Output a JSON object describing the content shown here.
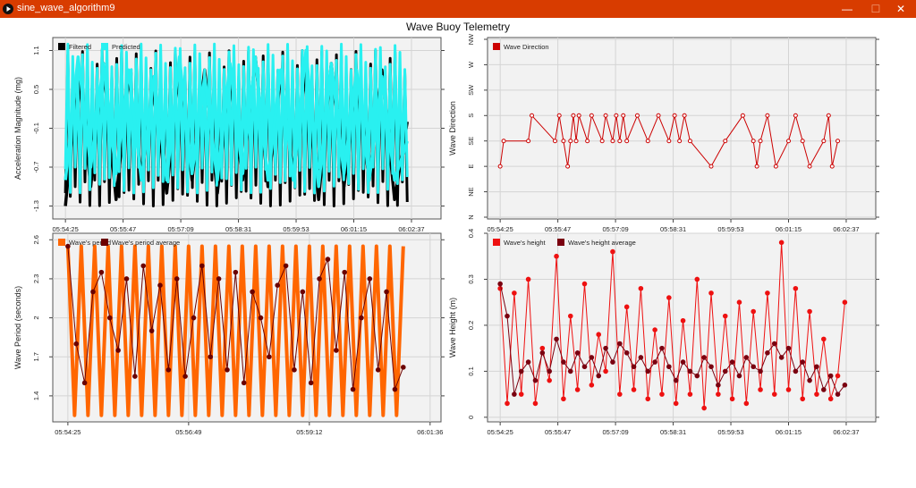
{
  "window": {
    "title": "sine_wave_algorithm9",
    "minimize_glyph": "—",
    "maximize_glyph": "☐",
    "close_glyph": "✕"
  },
  "figure": {
    "title": "Wave Buoy Telemetry"
  },
  "chart_data": [
    {
      "type": "line",
      "ylabel": "Acceleration Magnitude (mg)",
      "xlabel": "",
      "x_ticks": [
        "05:54:25",
        "05:55:47",
        "05:57:09",
        "05:58:31",
        "05:59:53",
        "06:01:15",
        "06:02:37"
      ],
      "y_ticks": [
        "1.1",
        "0.5",
        "-0.1",
        "-0.7",
        "-1.3"
      ],
      "ylim": [
        -1.5,
        1.3
      ],
      "grid": true,
      "legend_position": "top-left",
      "x_range_seconds": [
        -18,
        534
      ],
      "series": [
        {
          "name": "Filtered",
          "color": "#000000",
          "x_seconds": [
            0,
            18,
            36,
            54,
            72,
            90,
            108,
            126,
            144,
            162,
            180,
            198,
            216,
            234,
            252,
            270,
            288,
            306,
            324,
            342,
            360,
            378,
            396,
            414,
            432,
            450,
            468,
            486
          ],
          "values": [
            -1.3,
            0.8,
            -1.0,
            0.9,
            -1.2,
            0.7,
            -0.8,
            0.5,
            -1.1,
            0.9,
            -0.9,
            0.8,
            -1.1,
            0.7,
            -0.9,
            1.0,
            -1.0,
            0.7,
            -0.8,
            0.8,
            -1.2,
            0.9,
            -1.0,
            0.6,
            -0.9,
            0.8,
            -1.2,
            0.0
          ],
          "band_min": -1.1,
          "band_max": 0.9
        },
        {
          "name": "Predicted",
          "color": "#29f0f0",
          "x_seconds": [
            0,
            18,
            36,
            54,
            72,
            90,
            108,
            126,
            144,
            162,
            180,
            198,
            216,
            234,
            252,
            270,
            288,
            306,
            324,
            342,
            360,
            378,
            396,
            414,
            432,
            450,
            468,
            486
          ],
          "values": [
            -0.9,
            1.0,
            -0.7,
            0.9,
            -0.8,
            0.8,
            -0.9,
            0.7,
            -0.9,
            1.0,
            -0.8,
            0.7,
            -0.9,
            0.9,
            -0.8,
            1.0,
            -0.9,
            0.8,
            -0.9,
            1.1,
            -1.0,
            0.9,
            -0.8,
            0.8,
            -0.9,
            0.7,
            -0.9,
            -0.3
          ],
          "band_min": -0.9,
          "band_max": 1.0
        }
      ]
    },
    {
      "type": "line",
      "ylabel": "Wave Direction",
      "xlabel": "",
      "x_ticks": [
        "05:54:25",
        "05:55:47",
        "05:57:09",
        "05:58:31",
        "05:59:53",
        "06:01:15",
        "06:02:37"
      ],
      "y_ticks": [
        "NW",
        "W",
        "SW",
        "S",
        "SE",
        "E",
        "NE",
        "N"
      ],
      "grid": true,
      "legend_position": "top-left",
      "x_range_seconds": [
        -18,
        534
      ],
      "series": [
        {
          "name": "Wave Direction",
          "color": "#cc0000",
          "x_seconds": [
            0,
            5,
            40,
            45,
            78,
            84,
            90,
            96,
            100,
            104,
            108,
            112,
            124,
            130,
            145,
            150,
            160,
            165,
            170,
            175,
            180,
            195,
            210,
            225,
            240,
            248,
            255,
            262,
            270,
            300,
            320,
            345,
            360,
            365,
            370,
            380,
            392,
            410,
            420,
            430,
            440,
            460,
            467,
            472,
            480
          ],
          "values": [
            "E",
            "SE",
            "SE",
            "S",
            "SE",
            "S",
            "SE",
            "E",
            "SE",
            "S",
            "SE",
            "S",
            "SE",
            "S",
            "SE",
            "S",
            "SE",
            "S",
            "SE",
            "S",
            "SE",
            "S",
            "SE",
            "S",
            "SE",
            "S",
            "SE",
            "S",
            "SE",
            "E",
            "SE",
            "S",
            "SE",
            "E",
            "SE",
            "S",
            "E",
            "SE",
            "S",
            "SE",
            "E",
            "SE",
            "S",
            "E",
            "SE"
          ]
        }
      ]
    },
    {
      "type": "line",
      "ylabel": "Wave Period (seconds)",
      "xlabel": "",
      "x_ticks": [
        "05:54:25",
        "05:56:49",
        "05:59:12",
        "06:01:36"
      ],
      "y_ticks": [
        "2.6",
        "2.3",
        "2",
        "1.7",
        "1.4"
      ],
      "ylim": [
        1.2,
        2.65
      ],
      "grid": true,
      "legend_position": "top-left",
      "x_range_seconds": [
        -18,
        445
      ],
      "series": [
        {
          "name": "Wave's period",
          "color": "#ff6600",
          "x_seconds": [
            0,
            8,
            16,
            24,
            32,
            40,
            48,
            56,
            64,
            72,
            80,
            88,
            96,
            104,
            112,
            120,
            128,
            136,
            144,
            152,
            160,
            168,
            176,
            184,
            192,
            200,
            208,
            216,
            224,
            232,
            240,
            248,
            256,
            264,
            272,
            280,
            288,
            296,
            304,
            312,
            320,
            328,
            336,
            344,
            352,
            360,
            368,
            376,
            384,
            392,
            400
          ],
          "values": [
            2.55,
            1.25,
            2.55,
            1.25,
            2.55,
            1.25,
            2.55,
            1.25,
            2.55,
            1.25,
            2.55,
            1.25,
            2.55,
            1.25,
            2.55,
            1.25,
            2.55,
            1.25,
            2.55,
            1.25,
            2.55,
            1.25,
            2.55,
            1.25,
            2.55,
            1.25,
            2.55,
            1.25,
            2.55,
            1.25,
            2.55,
            1.25,
            2.55,
            1.25,
            2.55,
            1.25,
            2.55,
            1.25,
            2.55,
            1.25,
            2.55,
            1.25,
            2.55,
            1.25,
            2.55,
            1.25,
            2.55,
            1.25,
            2.55,
            1.25,
            2.55
          ]
        },
        {
          "name": "Wave's period average",
          "color": "#6b0000",
          "x_seconds": [
            0,
            10,
            20,
            30,
            40,
            50,
            60,
            70,
            80,
            90,
            100,
            110,
            120,
            130,
            140,
            150,
            160,
            170,
            180,
            190,
            200,
            210,
            220,
            230,
            240,
            250,
            260,
            270,
            280,
            290,
            300,
            310,
            320,
            330,
            340,
            350,
            360,
            370,
            380,
            390,
            400
          ],
          "values": [
            2.55,
            1.8,
            1.5,
            2.2,
            2.35,
            2.0,
            1.75,
            2.3,
            1.55,
            2.4,
            1.9,
            2.25,
            1.6,
            2.3,
            1.55,
            2.0,
            2.4,
            1.7,
            2.3,
            1.6,
            2.35,
            1.5,
            2.2,
            2.0,
            1.7,
            2.25,
            2.4,
            1.6,
            2.2,
            1.5,
            2.3,
            2.45,
            1.75,
            2.35,
            1.45,
            2.0,
            2.3,
            1.6,
            2.2,
            1.45,
            1.62
          ]
        }
      ]
    },
    {
      "type": "line",
      "ylabel": "Wave Height (m)",
      "xlabel": "",
      "x_ticks": [
        "05:54:25",
        "05:55:47",
        "05:57:09",
        "05:58:31",
        "05:59:53",
        "06:01:15",
        "06:02:37"
      ],
      "y_ticks": [
        "0.4",
        "0.3",
        "0.2",
        "0.1",
        "0"
      ],
      "ylim": [
        -0.01,
        0.4
      ],
      "grid": true,
      "legend_position": "top-left",
      "x_range_seconds": [
        -18,
        534
      ],
      "series": [
        {
          "name": "Wave's height",
          "color": "#ee1111",
          "x_seconds": [
            0,
            10,
            20,
            30,
            40,
            50,
            60,
            70,
            80,
            90,
            100,
            110,
            120,
            130,
            140,
            150,
            160,
            170,
            180,
            190,
            200,
            210,
            220,
            230,
            240,
            250,
            260,
            270,
            280,
            290,
            300,
            310,
            320,
            330,
            340,
            350,
            360,
            370,
            380,
            390,
            400,
            410,
            420,
            430,
            440,
            450,
            460,
            470,
            480,
            490
          ],
          "values": [
            0.28,
            0.03,
            0.27,
            0.05,
            0.3,
            0.03,
            0.15,
            0.08,
            0.35,
            0.04,
            0.22,
            0.06,
            0.29,
            0.07,
            0.18,
            0.1,
            0.36,
            0.05,
            0.24,
            0.06,
            0.28,
            0.04,
            0.19,
            0.05,
            0.26,
            0.03,
            0.21,
            0.05,
            0.3,
            0.02,
            0.27,
            0.05,
            0.22,
            0.04,
            0.25,
            0.03,
            0.23,
            0.06,
            0.27,
            0.05,
            0.38,
            0.06,
            0.28,
            0.04,
            0.23,
            0.05,
            0.17,
            0.04,
            0.09,
            0.25
          ]
        },
        {
          "name": "Wave's height average",
          "color": "#7a0010",
          "x_seconds": [
            0,
            10,
            20,
            30,
            40,
            50,
            60,
            70,
            80,
            90,
            100,
            110,
            120,
            130,
            140,
            150,
            160,
            170,
            180,
            190,
            200,
            210,
            220,
            230,
            240,
            250,
            260,
            270,
            280,
            290,
            300,
            310,
            320,
            330,
            340,
            350,
            360,
            370,
            380,
            390,
            400,
            410,
            420,
            430,
            440,
            450,
            460,
            470,
            480,
            490
          ],
          "values": [
            0.29,
            0.22,
            0.05,
            0.1,
            0.12,
            0.08,
            0.14,
            0.1,
            0.17,
            0.12,
            0.1,
            0.14,
            0.11,
            0.13,
            0.09,
            0.15,
            0.12,
            0.16,
            0.14,
            0.11,
            0.13,
            0.1,
            0.12,
            0.15,
            0.11,
            0.08,
            0.12,
            0.1,
            0.09,
            0.13,
            0.11,
            0.07,
            0.1,
            0.12,
            0.09,
            0.13,
            0.11,
            0.1,
            0.14,
            0.16,
            0.13,
            0.15,
            0.1,
            0.12,
            0.08,
            0.11,
            0.06,
            0.09,
            0.05,
            0.07
          ]
        }
      ]
    }
  ]
}
